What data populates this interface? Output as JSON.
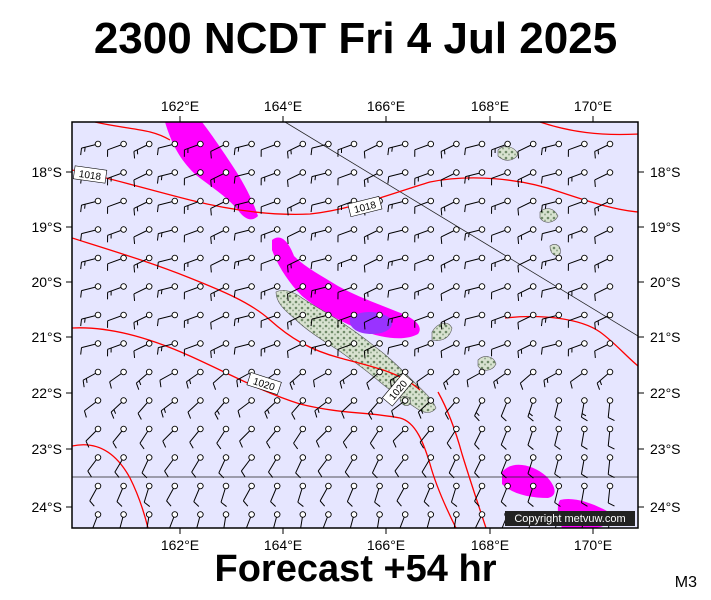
{
  "title": "2300 NCDT Fri 4 Jul 2025",
  "footer": "Forecast +54 hr",
  "map_code": "M3",
  "copyright": "Copyright metvuw.com",
  "axes": {
    "lon_labels": [
      "162°E",
      "164°E",
      "166°E",
      "168°E",
      "170°E"
    ],
    "lat_labels": [
      "18°S",
      "19°S",
      "20°S",
      "21°S",
      "22°S",
      "23°S",
      "24°S"
    ]
  },
  "isobar_labels": [
    "1018",
    "1018",
    "1020",
    "1020"
  ],
  "colors": {
    "ocean": "#e6e6ff",
    "isobar": "#ff0000",
    "rain_light": "#ff00ff",
    "rain_heavy": "#9933ff",
    "land": "#b8c8b0"
  }
}
